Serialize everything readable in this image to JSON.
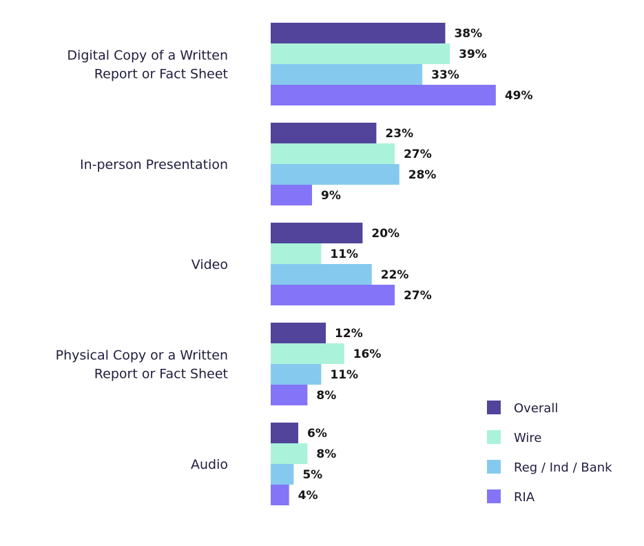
{
  "chart_data": {
    "type": "bar",
    "orientation": "horizontal",
    "title": "",
    "xlabel": "",
    "ylabel": "",
    "xlim": [
      0,
      50
    ],
    "grid": false,
    "legend_position": "bottom-right",
    "categories": [
      [
        "Digital Copy of a Written",
        "Report or Fact Sheet"
      ],
      [
        "In-person Presentation"
      ],
      [
        "Video"
      ],
      [
        "Physical Copy or a Written",
        "Report or Fact Sheet"
      ],
      [
        "Audio"
      ]
    ],
    "series": [
      {
        "name": "Overall",
        "color": "#51449a",
        "values": [
          38,
          23,
          20,
          12,
          6
        ]
      },
      {
        "name": "Wire",
        "color": "#aaf2d9",
        "values": [
          39,
          27,
          11,
          16,
          8
        ]
      },
      {
        "name": "Reg / Ind / Bank",
        "color": "#86c9ef",
        "values": [
          33,
          28,
          22,
          11,
          5
        ]
      },
      {
        "name": "RIA",
        "color": "#8474f7",
        "values": [
          49,
          9,
          27,
          8,
          4
        ]
      }
    ],
    "value_suffix": "%"
  }
}
